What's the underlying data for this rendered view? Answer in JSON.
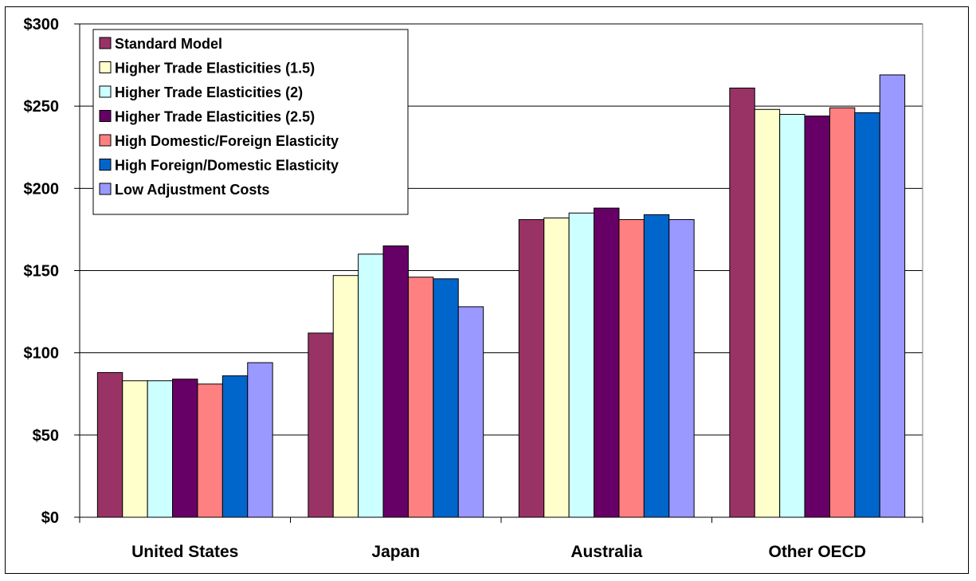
{
  "chart_data": {
    "type": "bar",
    "categories": [
      "United States",
      "Japan",
      "Australia",
      "Other OECD"
    ],
    "series": [
      {
        "name": "Standard Model",
        "color": "#993366",
        "values": [
          88,
          112,
          181,
          261
        ]
      },
      {
        "name": "Higher Trade Elasticities (1.5)",
        "color": "#FFFFCC",
        "values": [
          83,
          147,
          182,
          248
        ]
      },
      {
        "name": "Higher Trade Elasticities (2)",
        "color": "#CCFFFF",
        "values": [
          83,
          160,
          185,
          245
        ]
      },
      {
        "name": "Higher Trade Elasticities (2.5)",
        "color": "#660066",
        "values": [
          84,
          165,
          188,
          244
        ]
      },
      {
        "name": "High Domestic/Foreign Elasticity",
        "color": "#FF8080",
        "values": [
          81,
          146,
          181,
          249
        ]
      },
      {
        "name": "High Foreign/Domestic Elasticity",
        "color": "#0066CC",
        "values": [
          86,
          145,
          184,
          246
        ]
      },
      {
        "name": "Low Adjustment Costs",
        "color": "#9999FF",
        "values": [
          94,
          128,
          181,
          269
        ]
      }
    ],
    "ylim": [
      0,
      300
    ],
    "ytick_values": [
      0,
      50,
      100,
      150,
      200,
      250,
      300
    ],
    "ytick_labels": [
      "$0",
      "$50",
      "$100",
      "$150",
      "$200",
      "$250",
      "$300"
    ],
    "grid": true,
    "legend_placement": "top-left",
    "title": "",
    "xlabel": "",
    "ylabel": ""
  }
}
